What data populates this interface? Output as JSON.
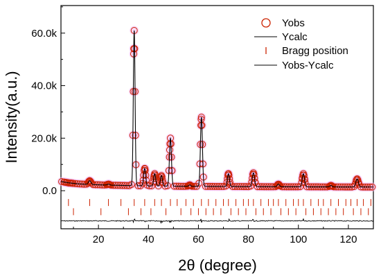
{
  "chart_data": {
    "type": "scatter",
    "title": "",
    "xlabel": "2θ (degree)",
    "ylabel": "Intensity(a.u.)",
    "xlim": [
      5,
      130
    ],
    "ylim": [
      -14500,
      70500
    ],
    "x_ticks": [
      20,
      40,
      60,
      80,
      100,
      120
    ],
    "x_tick_labels": [
      "20",
      "40",
      "60",
      "80",
      "100",
      "120"
    ],
    "y_ticks": [
      0,
      20000,
      40000,
      60000
    ],
    "y_tick_labels": [
      "0.0",
      "20.0k",
      "40.0k",
      "60.0k"
    ],
    "legend_position": "top-right",
    "colors": {
      "observed": "#cc2200",
      "calculated": "#000000",
      "bragg": "#cc2200",
      "difference": "#000000",
      "halo": "#f2b8f2"
    },
    "background": {
      "x": [
        5,
        8,
        12,
        18,
        25,
        35,
        50,
        70,
        90,
        110,
        130
      ],
      "y": [
        3500,
        3000,
        2600,
        2300,
        2100,
        1900,
        1700,
        1600,
        1500,
        1450,
        1400
      ]
    },
    "peaks": {
      "x": [
        8,
        16.5,
        24,
        34.3,
        38.5,
        42.5,
        45.2,
        48.8,
        56.5,
        61.2,
        72,
        82,
        92,
        102,
        113,
        123.5
      ],
      "y": [
        3000,
        3800,
        2500,
        61000,
        8500,
        6500,
        5800,
        20000,
        2200,
        28000,
        6500,
        6800,
        2500,
        6500,
        2000,
        4500
      ],
      "width": [
        1.0,
        0.5,
        0.5,
        0.35,
        0.4,
        0.4,
        0.4,
        0.4,
        0.4,
        0.4,
        0.4,
        0.45,
        0.45,
        0.45,
        0.45,
        0.5
      ]
    },
    "series": [
      {
        "name": "Yobs",
        "marker": "open-circle"
      },
      {
        "name": "Ycalc",
        "marker": "line"
      },
      {
        "name": "Bragg position",
        "marker": "tick"
      },
      {
        "name": "Yobs-Ycalc",
        "marker": "line"
      }
    ],
    "bragg_positions": [
      {
        "y": -4500,
        "x": [
          8,
          16.5,
          24,
          29,
          34.3,
          38.5,
          42.5,
          45.2,
          48.8,
          51.5,
          55,
          58,
          61.2,
          64,
          67,
          70,
          72,
          75,
          78,
          80,
          82,
          85,
          88,
          90,
          92,
          95,
          98,
          100,
          102,
          105,
          108,
          110,
          113,
          116,
          119,
          121,
          123.5,
          126,
          129
        ]
      },
      {
        "y": -8000,
        "x": [
          10,
          21,
          32,
          37,
          41,
          47,
          53,
          57,
          60,
          63,
          66,
          69,
          73,
          76,
          79,
          83,
          86,
          89,
          93,
          96,
          99,
          103,
          106,
          109,
          112,
          115,
          118,
          122,
          125,
          128
        ]
      }
    ],
    "difference_baseline": -11500
  }
}
